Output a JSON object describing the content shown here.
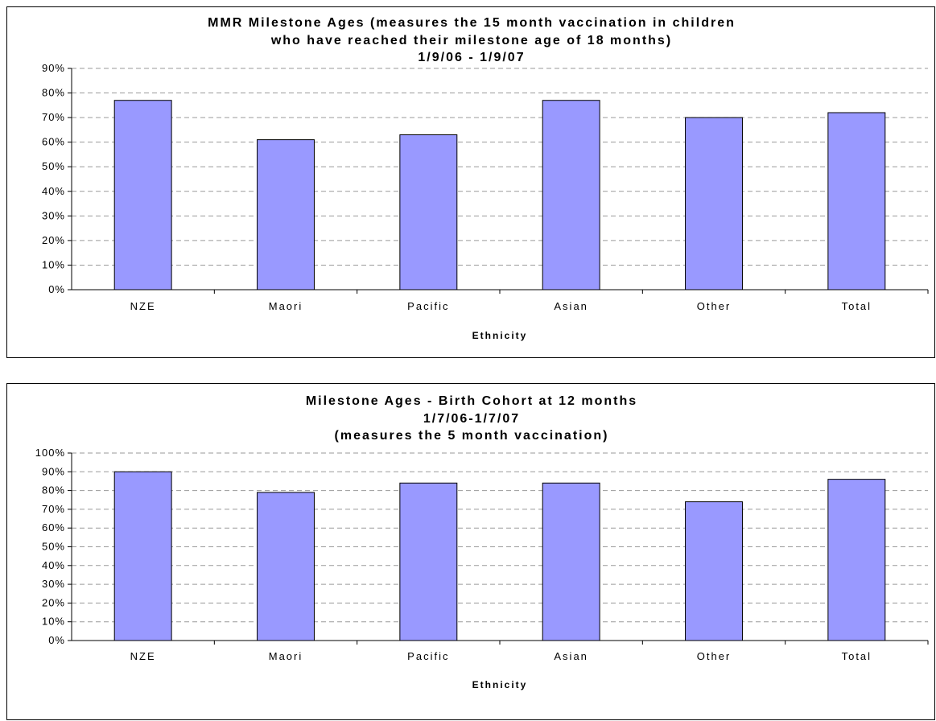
{
  "chart_data": [
    {
      "type": "bar",
      "title_lines": [
        "MMR Milestone Ages (measures the 15 month vaccination in children",
        "who have reached their milestone age of 18 months)",
        "1/9/06 - 1/9/07"
      ],
      "xlabel": "Ethnicity",
      "ylabel": "",
      "categories": [
        "NZE",
        "Maori",
        "Pacific",
        "Asian",
        "Other",
        "Total"
      ],
      "values": [
        77,
        61,
        63,
        77,
        70,
        72
      ],
      "ylim": [
        0,
        90
      ],
      "yticks": [
        "0%",
        "10%",
        "20%",
        "30%",
        "40%",
        "50%",
        "60%",
        "70%",
        "80%",
        "90%"
      ],
      "grid": true,
      "bar_color": "#9999ff"
    },
    {
      "type": "bar",
      "title_lines": [
        "Milestone Ages - Birth Cohort at 12 months",
        "1/7/06-1/7/07",
        "(measures the 5 month vaccination)"
      ],
      "xlabel": "Ethnicity",
      "ylabel": "",
      "categories": [
        "NZE",
        "Maori",
        "Pacific",
        "Asian",
        "Other",
        "Total"
      ],
      "values": [
        90,
        79,
        84,
        84,
        74,
        86
      ],
      "ylim": [
        0,
        100
      ],
      "yticks": [
        "0%",
        "10%",
        "20%",
        "30%",
        "40%",
        "50%",
        "60%",
        "70%",
        "80%",
        "90%",
        "100%"
      ],
      "grid": true,
      "bar_color": "#9999ff"
    }
  ]
}
